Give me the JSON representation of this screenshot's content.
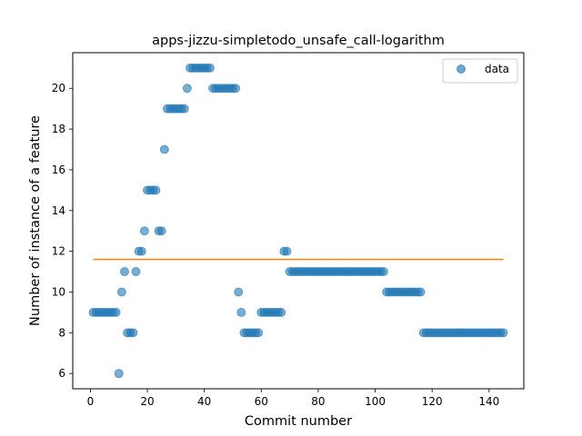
{
  "chart_data": {
    "type": "scatter",
    "title": "apps-jizzu-simpletodo_unsafe_call-logarithm",
    "xlabel": "Commit number",
    "ylabel": "Number of instance of a feature",
    "xlim": [
      -6.2,
      152.2
    ],
    "ylim": [
      5.25,
      21.75
    ],
    "xticks": [
      0,
      20,
      40,
      60,
      80,
      100,
      120,
      140
    ],
    "yticks": [
      6,
      8,
      10,
      12,
      14,
      16,
      18,
      20
    ],
    "legend": {
      "position": "top-right",
      "entries": [
        "data"
      ]
    },
    "colors": {
      "points": "#1f77b4",
      "fit_line": "#ff7f0e"
    },
    "series": [
      {
        "name": "data",
        "x": [
          1,
          2,
          3,
          4,
          5,
          6,
          7,
          8,
          9,
          10,
          11,
          12,
          13,
          14,
          15,
          16,
          17,
          18,
          19,
          20,
          21,
          22,
          23,
          24,
          25,
          26,
          27,
          28,
          29,
          30,
          31,
          32,
          33,
          34,
          35,
          36,
          37,
          38,
          39,
          40,
          41,
          42,
          43,
          44,
          45,
          46,
          47,
          48,
          49,
          50,
          51,
          52,
          53,
          54,
          55,
          56,
          57,
          58,
          59,
          60,
          61,
          62,
          63,
          64,
          65,
          66,
          67,
          68,
          69,
          70,
          71,
          72,
          73,
          74,
          75,
          76,
          77,
          78,
          79,
          80,
          81,
          82,
          83,
          84,
          85,
          86,
          87,
          88,
          89,
          90,
          91,
          92,
          93,
          94,
          95,
          96,
          97,
          98,
          99,
          100,
          101,
          102,
          103,
          104,
          105,
          106,
          107,
          108,
          109,
          110,
          111,
          112,
          113,
          114,
          115,
          116,
          117,
          118,
          119,
          120,
          121,
          122,
          123,
          124,
          125,
          126,
          127,
          128,
          129,
          130,
          131,
          132,
          133,
          134,
          135,
          136,
          137,
          138,
          139,
          140,
          141,
          142,
          143,
          144,
          145
        ],
        "y": [
          9,
          9,
          9,
          9,
          9,
          9,
          9,
          9,
          9,
          6,
          10,
          11,
          8,
          8,
          8,
          11,
          12,
          12,
          13,
          15,
          15,
          15,
          15,
          13,
          13,
          17,
          19,
          19,
          19,
          19,
          19,
          19,
          19,
          20,
          21,
          21,
          21,
          21,
          21,
          21,
          21,
          21,
          20,
          20,
          20,
          20,
          20,
          20,
          20,
          20,
          20,
          10,
          9,
          8,
          8,
          8,
          8,
          8,
          8,
          9,
          9,
          9,
          9,
          9,
          9,
          9,
          9,
          12,
          12,
          11,
          11,
          11,
          11,
          11,
          11,
          11,
          11,
          11,
          11,
          11,
          11,
          11,
          11,
          11,
          11,
          11,
          11,
          11,
          11,
          11,
          11,
          11,
          11,
          11,
          11,
          11,
          11,
          11,
          11,
          11,
          11,
          11,
          11,
          10,
          10,
          10,
          10,
          10,
          10,
          10,
          10,
          10,
          10,
          10,
          10,
          10,
          8,
          8,
          8,
          8,
          8,
          8,
          8,
          8,
          8,
          8,
          8,
          8,
          8,
          8,
          8,
          8,
          8,
          8,
          8,
          8,
          8,
          8,
          8,
          8,
          8,
          8,
          8,
          8,
          8
        ]
      },
      {
        "x": [
          1,
          145
        ],
        "y": [
          11.6,
          11.6
        ]
      }
    ]
  }
}
